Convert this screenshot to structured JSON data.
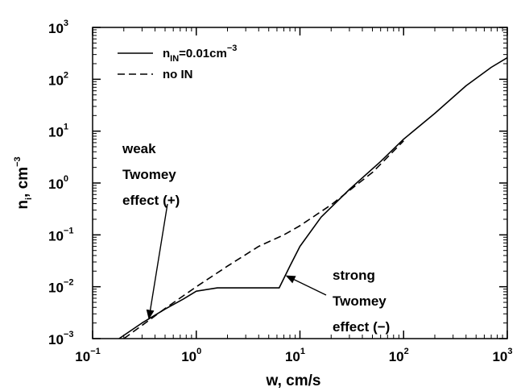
{
  "chart_data": {
    "type": "line",
    "xlabel": "w, cm/s",
    "ylabel": {
      "base": "n",
      "sub": "i",
      "unit": ", cm",
      "sup": "−3"
    },
    "xscale": "log",
    "yscale": "log",
    "xlim": [
      0.1,
      1000
    ],
    "ylim": [
      0.001,
      1000
    ],
    "x_ticks": [
      {
        "value": 0.1,
        "base": "10",
        "exp": "−1"
      },
      {
        "value": 1,
        "base": "10",
        "exp": "0"
      },
      {
        "value": 10,
        "base": "10",
        "exp": "1"
      },
      {
        "value": 100,
        "base": "10",
        "exp": "2"
      },
      {
        "value": 1000,
        "base": "10",
        "exp": "3"
      }
    ],
    "y_ticks": [
      {
        "value": 0.001,
        "base": "10",
        "exp": "−3"
      },
      {
        "value": 0.01,
        "base": "10",
        "exp": "−2"
      },
      {
        "value": 0.1,
        "base": "10",
        "exp": "−1"
      },
      {
        "value": 1,
        "base": "10",
        "exp": "0"
      },
      {
        "value": 10,
        "base": "10",
        "exp": "1"
      },
      {
        "value": 100,
        "base": "10",
        "exp": "2"
      },
      {
        "value": 1000,
        "base": "10",
        "exp": "3"
      }
    ],
    "grid": false,
    "legend_position": "top-left",
    "series": [
      {
        "name": "n_IN=0.01cm^-3",
        "legend": {
          "pre": "n",
          "sub": "IN",
          "post": "=0.01cm",
          "sup": "−3"
        },
        "style": "solid",
        "x": [
          0.18,
          0.3,
          0.5,
          0.75,
          1.0,
          1.6,
          3.0,
          6.3,
          8.0,
          10.0,
          16.0,
          30.0,
          60.0,
          100.0,
          200.0,
          400.0,
          700.0,
          1000.0
        ],
        "y": [
          0.001,
          0.002,
          0.0037,
          0.0058,
          0.0082,
          0.0095,
          0.0095,
          0.0095,
          0.025,
          0.06,
          0.22,
          0.75,
          2.6,
          7.0,
          22.0,
          75.0,
          170.0,
          260.0
        ]
      },
      {
        "name": "no IN",
        "legend": {
          "pre": "no IN"
        },
        "style": "dashed",
        "x": [
          0.2,
          0.3,
          0.5,
          1.0,
          2.0,
          4.0,
          7.0,
          10.0,
          20.0,
          50.0,
          100.0
        ],
        "y": [
          0.001,
          0.0018,
          0.0038,
          0.01,
          0.025,
          0.06,
          0.1,
          0.15,
          0.38,
          1.6,
          6.5
        ]
      }
    ],
    "annotations": [
      {
        "lines": [
          "weak",
          "Twomey",
          "effect (+)"
        ],
        "arrow_to": [
          0.35,
          0.0025
        ]
      },
      {
        "lines": [
          "strong",
          "Twomey",
          "effect (−)"
        ],
        "arrow_to": [
          7.5,
          0.016
        ]
      }
    ]
  }
}
